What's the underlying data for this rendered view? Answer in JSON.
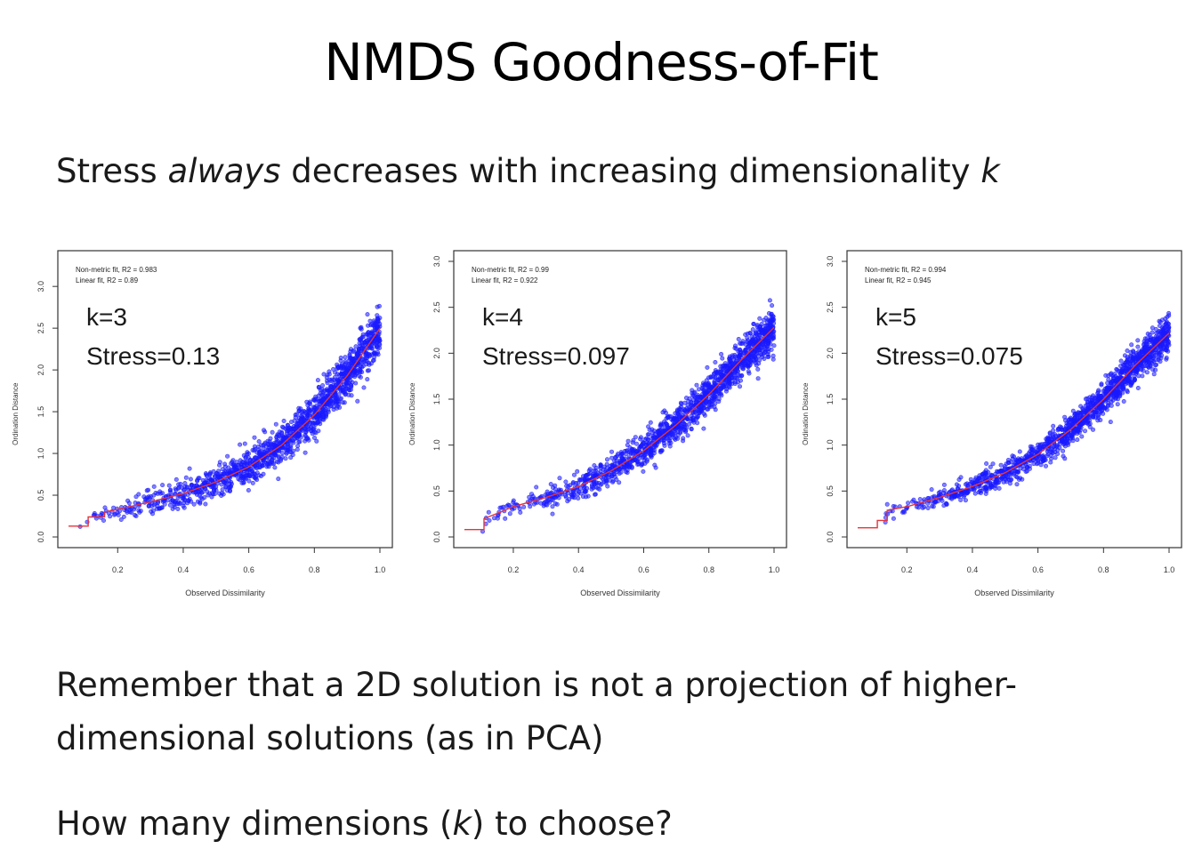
{
  "slide": {
    "title": "NMDS Goodness-of-Fit",
    "subtitle": {
      "before": "Stress ",
      "emph": "always",
      "after": " decreases with increasing dimensionality ",
      "k": "k"
    },
    "note": "Remember that a 2D solution is not a projection of higher-dimensional solutions (as in PCA)",
    "question": {
      "before": "How many dimensions (",
      "k": "k",
      "after": ") to choose?"
    }
  },
  "colors": {
    "points": "#1a1aff",
    "fit_line": "#e6333a",
    "frame": "#333333"
  },
  "chart_data": [
    {
      "type": "scatter",
      "title": "",
      "xlabel": "Observed Dissimilarity",
      "ylabel": "Ordination Distance",
      "xlim": [
        0.05,
        1.0
      ],
      "ylim": [
        0.0,
        3.3
      ],
      "xticks": [
        "0.2",
        "0.4",
        "0.6",
        "0.8",
        "1.0"
      ],
      "yticks": [
        "0.0",
        "0.5",
        "1.0",
        "1.5",
        "2.0",
        "2.5",
        "3.0"
      ],
      "legend": [
        "Non-metric fit, R2 = 0.983",
        "Linear fit, R2 = 0.89"
      ],
      "annotation": {
        "k": "k=3",
        "stress": "Stress=0.13"
      },
      "fit_curve": {
        "x": [
          0.05,
          0.11,
          0.11,
          0.16,
          0.16,
          0.2,
          0.3,
          0.4,
          0.5,
          0.6,
          0.7,
          0.8,
          0.9,
          1.0
        ],
        "y": [
          0.13,
          0.13,
          0.24,
          0.24,
          0.3,
          0.33,
          0.42,
          0.52,
          0.66,
          0.84,
          1.1,
          1.46,
          1.93,
          2.5
        ]
      },
      "spread": 0.22
    },
    {
      "type": "scatter",
      "title": "",
      "xlabel": "Observed Dissimilarity",
      "ylabel": "Ordination Distance",
      "xlim": [
        0.05,
        1.0
      ],
      "ylim": [
        0.0,
        3.0
      ],
      "xticks": [
        "0.2",
        "0.4",
        "0.6",
        "0.8",
        "1.0"
      ],
      "yticks": [
        "0.0",
        "0.5",
        "1.0",
        "1.5",
        "2.0",
        "2.5",
        "3.0"
      ],
      "legend": [
        "Non-metric fit, R2 = 0.99",
        "Linear fit, R2 = 0.922"
      ],
      "annotation": {
        "k": "k=4",
        "stress": "Stress=0.097"
      },
      "fit_curve": {
        "x": [
          0.05,
          0.11,
          0.11,
          0.16,
          0.2,
          0.3,
          0.4,
          0.5,
          0.6,
          0.7,
          0.8,
          0.9,
          1.0
        ],
        "y": [
          0.08,
          0.08,
          0.2,
          0.27,
          0.33,
          0.43,
          0.55,
          0.72,
          0.94,
          1.22,
          1.55,
          1.93,
          2.28
        ]
      },
      "spread": 0.19
    },
    {
      "type": "scatter",
      "title": "",
      "xlabel": "Observed Dissimilarity",
      "ylabel": "Ordination Distance",
      "xlim": [
        0.05,
        1.0
      ],
      "ylim": [
        0.0,
        3.0
      ],
      "xticks": [
        "0.2",
        "0.4",
        "0.6",
        "0.8",
        "1.0"
      ],
      "yticks": [
        "0.0",
        "0.5",
        "1.0",
        "1.5",
        "2.0",
        "2.5",
        "3.0"
      ],
      "legend": [
        "Non-metric fit, R2 = 0.994",
        "Linear fit, R2 = 0.945"
      ],
      "annotation": {
        "k": "k=5",
        "stress": "Stress=0.075"
      },
      "fit_curve": {
        "x": [
          0.05,
          0.11,
          0.11,
          0.14,
          0.14,
          0.2,
          0.3,
          0.4,
          0.5,
          0.6,
          0.7,
          0.8,
          0.9,
          1.0
        ],
        "y": [
          0.1,
          0.1,
          0.18,
          0.18,
          0.29,
          0.33,
          0.43,
          0.55,
          0.7,
          0.9,
          1.17,
          1.5,
          1.88,
          2.22
        ]
      },
      "spread": 0.16
    }
  ]
}
